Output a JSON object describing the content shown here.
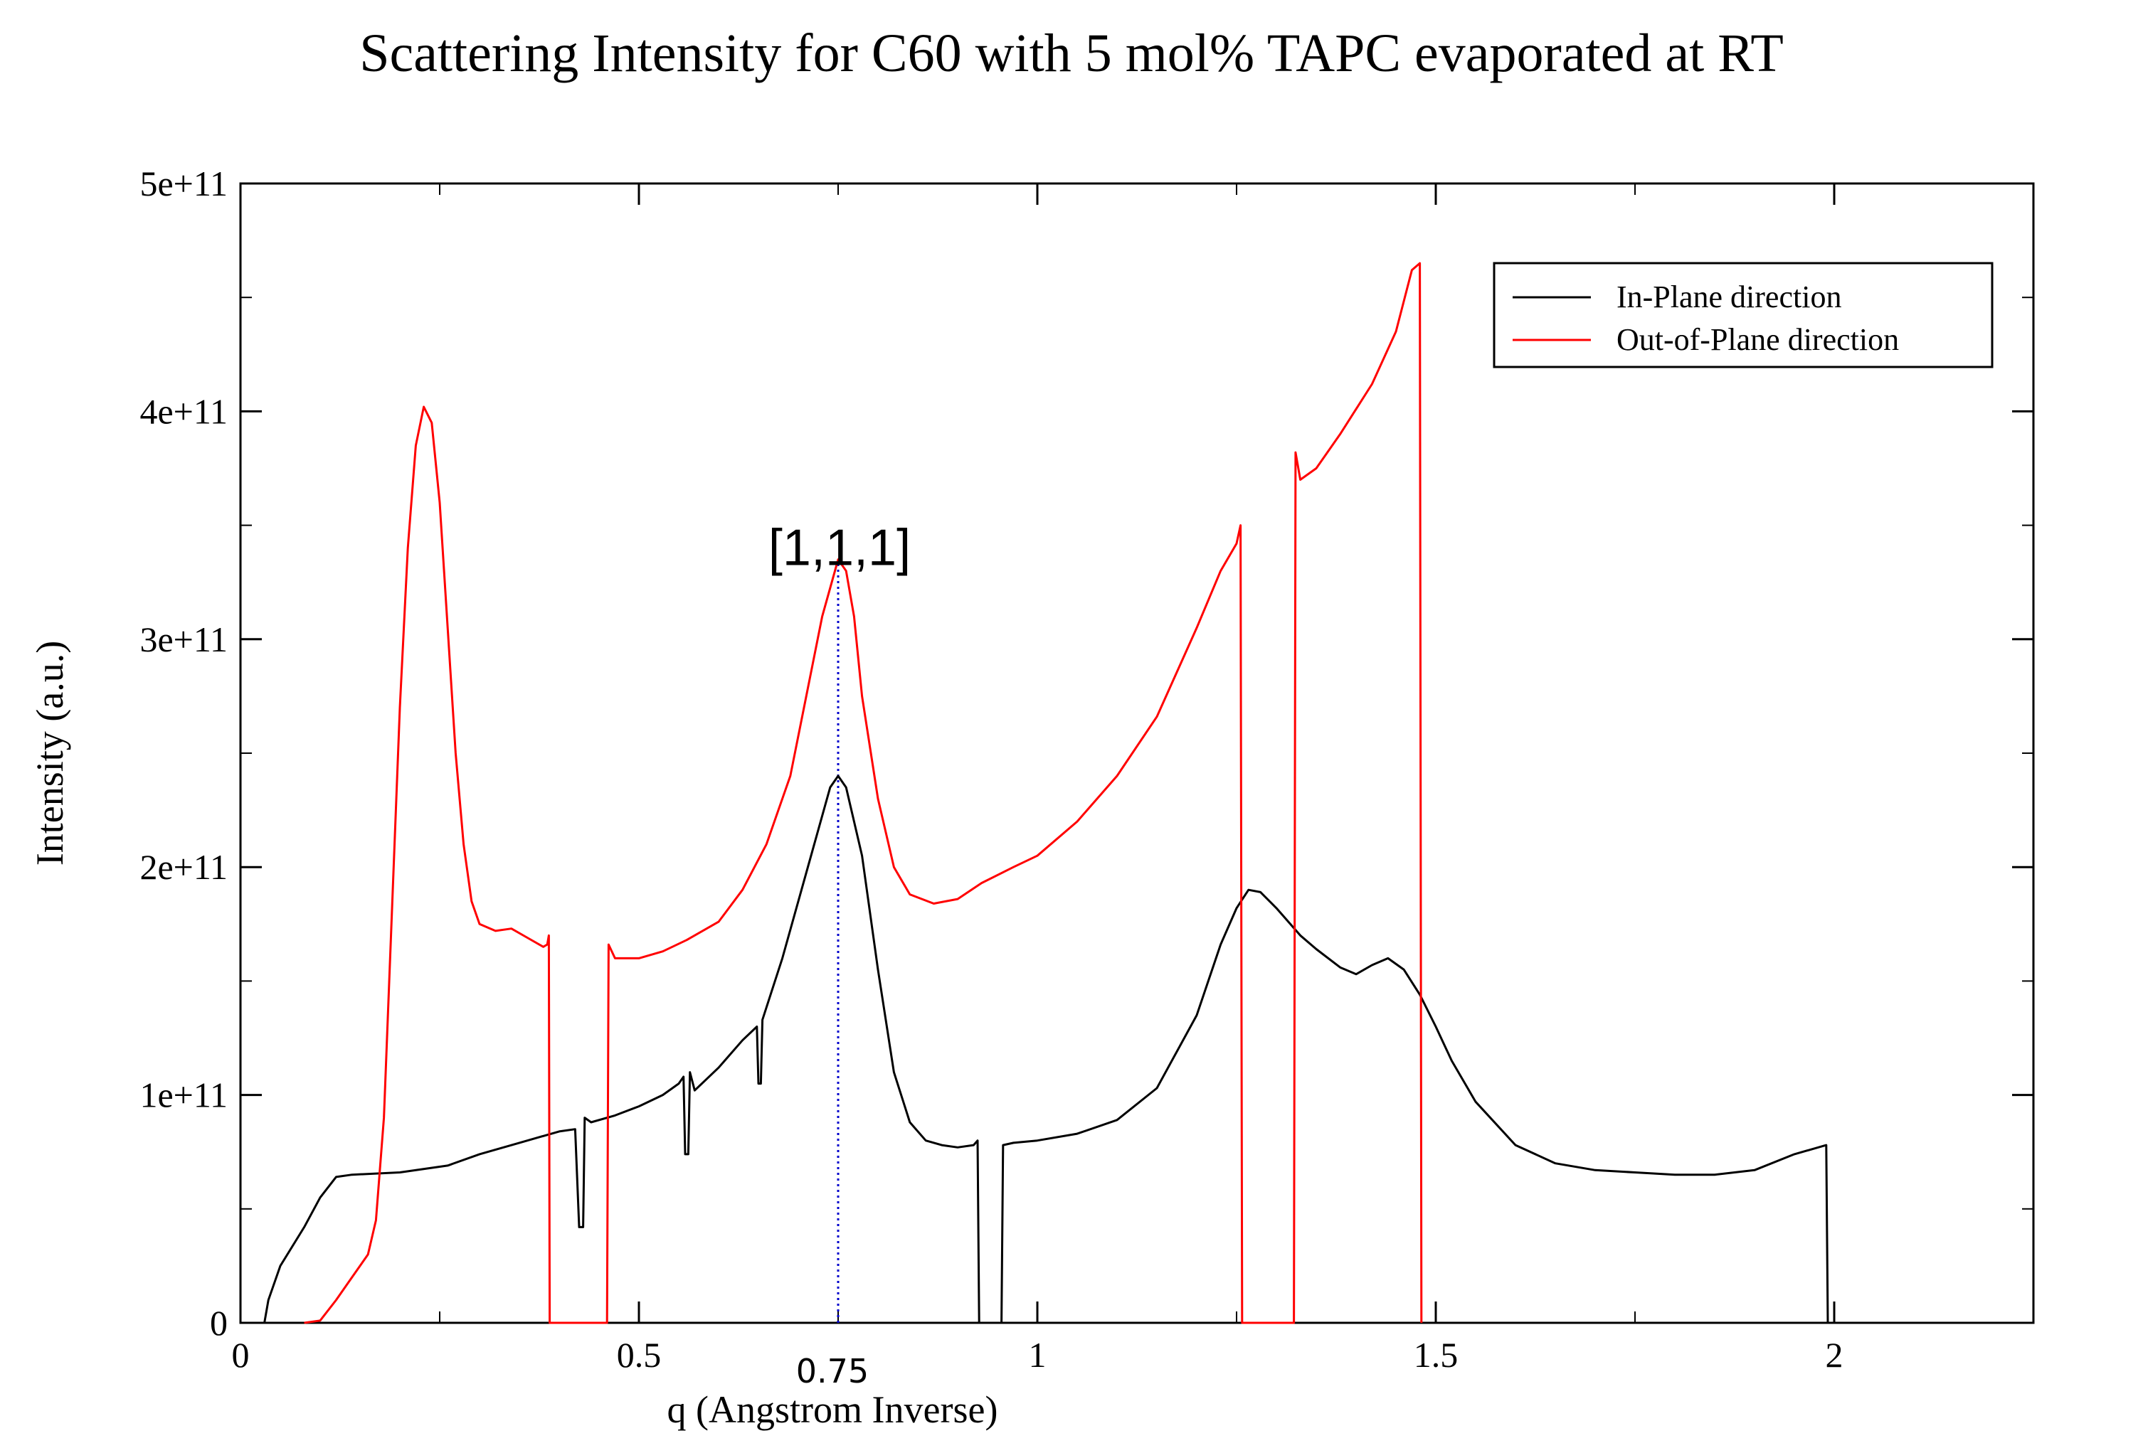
{
  "chart_data": {
    "type": "line",
    "title": "Scattering Intensity for C60 with 5 mol% TAPC evaporated at RT",
    "xlabel": "q (Angstrom Inverse)",
    "ylabel": "Intensity (a.u.)",
    "xlim": [
      0,
      2.25
    ],
    "ylim": [
      0,
      500000000000
    ],
    "x_ticks": [
      {
        "value": 0,
        "label": "0"
      },
      {
        "value": 0.5,
        "label": "0.5"
      },
      {
        "value": 1,
        "label": "1"
      },
      {
        "value": 1.5,
        "label": "1.5"
      },
      {
        "value": 2,
        "label": "2"
      }
    ],
    "y_ticks": [
      {
        "value": 0,
        "label": "0"
      },
      {
        "value": 100000000000,
        "label": "1e+11"
      },
      {
        "value": 200000000000,
        "label": "2e+11"
      },
      {
        "value": 300000000000,
        "label": "3e+11"
      },
      {
        "value": 400000000000,
        "label": "4e+11"
      },
      {
        "value": 500000000000,
        "label": "5e+11"
      }
    ],
    "x_minor_step": 0.25,
    "y_minor_step": 50000000000,
    "grid": false,
    "legend_position": "top-right",
    "series": [
      {
        "name": "In-Plane direction",
        "color": "#000000",
        "points": [
          [
            0.03,
            0
          ],
          [
            0.035,
            0.1
          ],
          [
            0.05,
            0.25
          ],
          [
            0.08,
            0.42
          ],
          [
            0.1,
            0.55
          ],
          [
            0.12,
            0.64
          ],
          [
            0.14,
            0.65
          ],
          [
            0.2,
            0.66
          ],
          [
            0.26,
            0.69
          ],
          [
            0.3,
            0.74
          ],
          [
            0.35,
            0.79
          ],
          [
            0.4,
            0.84
          ],
          [
            0.42,
            0.85
          ],
          [
            0.425,
            0.42
          ],
          [
            0.43,
            0.42
          ],
          [
            0.432,
            0.9
          ],
          [
            0.44,
            0.88
          ],
          [
            0.47,
            0.91
          ],
          [
            0.5,
            0.95
          ],
          [
            0.53,
            1.0
          ],
          [
            0.55,
            1.05
          ],
          [
            0.556,
            1.08
          ],
          [
            0.558,
            0.74
          ],
          [
            0.562,
            0.74
          ],
          [
            0.564,
            1.1
          ],
          [
            0.57,
            1.02
          ],
          [
            0.6,
            1.12
          ],
          [
            0.63,
            1.24
          ],
          [
            0.648,
            1.3
          ],
          [
            0.65,
            1.05
          ],
          [
            0.653,
            1.05
          ],
          [
            0.655,
            1.33
          ],
          [
            0.68,
            1.6
          ],
          [
            0.7,
            1.85
          ],
          [
            0.72,
            2.1
          ],
          [
            0.74,
            2.35
          ],
          [
            0.75,
            2.4
          ],
          [
            0.76,
            2.35
          ],
          [
            0.78,
            2.05
          ],
          [
            0.8,
            1.55
          ],
          [
            0.82,
            1.1
          ],
          [
            0.84,
            0.88
          ],
          [
            0.86,
            0.8
          ],
          [
            0.88,
            0.78
          ],
          [
            0.9,
            0.77
          ],
          [
            0.92,
            0.78
          ],
          [
            0.925,
            0.8
          ],
          [
            0.927,
            0
          ],
          [
            0.955,
            0
          ],
          [
            0.957,
            0.78
          ],
          [
            0.97,
            0.79
          ],
          [
            1.0,
            0.8
          ],
          [
            1.05,
            0.83
          ],
          [
            1.1,
            0.89
          ],
          [
            1.15,
            1.03
          ],
          [
            1.2,
            1.35
          ],
          [
            1.23,
            1.66
          ],
          [
            1.25,
            1.82
          ],
          [
            1.265,
            1.9
          ],
          [
            1.28,
            1.89
          ],
          [
            1.3,
            1.82
          ],
          [
            1.33,
            1.7
          ],
          [
            1.35,
            1.64
          ],
          [
            1.38,
            1.56
          ],
          [
            1.4,
            1.53
          ],
          [
            1.42,
            1.57
          ],
          [
            1.44,
            1.6
          ],
          [
            1.46,
            1.55
          ],
          [
            1.48,
            1.44
          ],
          [
            1.5,
            1.3
          ],
          [
            1.52,
            1.15
          ],
          [
            1.55,
            0.97
          ],
          [
            1.6,
            0.78
          ],
          [
            1.65,
            0.7
          ],
          [
            1.7,
            0.67
          ],
          [
            1.75,
            0.66
          ],
          [
            1.8,
            0.65
          ],
          [
            1.85,
            0.65
          ],
          [
            1.9,
            0.67
          ],
          [
            1.95,
            0.74
          ],
          [
            1.98,
            0.77
          ],
          [
            1.99,
            0.78
          ],
          [
            1.992,
            0
          ]
        ]
      },
      {
        "name": "Out-of-Plane direction",
        "color": "#ff0000",
        "points": [
          [
            0.08,
            0
          ],
          [
            0.1,
            0.01
          ],
          [
            0.12,
            0.1
          ],
          [
            0.14,
            0.2
          ],
          [
            0.16,
            0.3
          ],
          [
            0.17,
            0.45
          ],
          [
            0.18,
            0.9
          ],
          [
            0.19,
            1.8
          ],
          [
            0.2,
            2.7
          ],
          [
            0.21,
            3.4
          ],
          [
            0.22,
            3.85
          ],
          [
            0.23,
            4.02
          ],
          [
            0.24,
            3.95
          ],
          [
            0.25,
            3.6
          ],
          [
            0.26,
            3.05
          ],
          [
            0.27,
            2.5
          ],
          [
            0.28,
            2.1
          ],
          [
            0.29,
            1.85
          ],
          [
            0.3,
            1.75
          ],
          [
            0.32,
            1.72
          ],
          [
            0.34,
            1.73
          ],
          [
            0.36,
            1.69
          ],
          [
            0.38,
            1.65
          ],
          [
            0.385,
            1.66
          ],
          [
            0.387,
            1.7
          ],
          [
            0.388,
            0
          ],
          [
            0.46,
            0
          ],
          [
            0.462,
            1.66
          ],
          [
            0.47,
            1.6
          ],
          [
            0.5,
            1.6
          ],
          [
            0.53,
            1.63
          ],
          [
            0.56,
            1.68
          ],
          [
            0.6,
            1.76
          ],
          [
            0.63,
            1.9
          ],
          [
            0.66,
            2.1
          ],
          [
            0.69,
            2.4
          ],
          [
            0.71,
            2.75
          ],
          [
            0.73,
            3.1
          ],
          [
            0.75,
            3.35
          ],
          [
            0.76,
            3.3
          ],
          [
            0.77,
            3.1
          ],
          [
            0.78,
            2.75
          ],
          [
            0.8,
            2.3
          ],
          [
            0.82,
            2.0
          ],
          [
            0.84,
            1.88
          ],
          [
            0.87,
            1.84
          ],
          [
            0.9,
            1.86
          ],
          [
            0.93,
            1.93
          ],
          [
            0.97,
            2.0
          ],
          [
            1.0,
            2.05
          ],
          [
            1.05,
            2.2
          ],
          [
            1.1,
            2.4
          ],
          [
            1.15,
            2.66
          ],
          [
            1.2,
            3.05
          ],
          [
            1.23,
            3.3
          ],
          [
            1.25,
            3.42
          ],
          [
            1.255,
            3.5
          ],
          [
            1.257,
            0
          ],
          [
            1.322,
            0
          ],
          [
            1.324,
            3.82
          ],
          [
            1.33,
            3.7
          ],
          [
            1.35,
            3.75
          ],
          [
            1.38,
            3.9
          ],
          [
            1.42,
            4.12
          ],
          [
            1.45,
            4.35
          ],
          [
            1.47,
            4.62
          ],
          [
            1.48,
            4.65
          ],
          [
            1.482,
            0
          ]
        ]
      }
    ],
    "annotations": [
      {
        "text": "[1,1,1]",
        "x": 0.75,
        "y": 3.5
      },
      {
        "text": "0.75",
        "x": 0.75
      }
    ],
    "reference_line": {
      "x": 0.75,
      "color": "#0000cc",
      "style": "dotted"
    }
  }
}
